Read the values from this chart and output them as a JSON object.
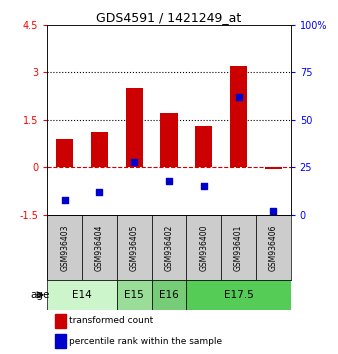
{
  "title": "GDS4591 / 1421249_at",
  "samples": [
    "GSM936403",
    "GSM936404",
    "GSM936405",
    "GSM936402",
    "GSM936400",
    "GSM936401",
    "GSM936406"
  ],
  "transformed_count": [
    0.9,
    1.1,
    2.5,
    1.7,
    1.3,
    3.2,
    -0.05
  ],
  "percentile_rank": [
    8,
    12,
    28,
    18,
    15,
    62,
    2
  ],
  "ylim_left": [
    -1.5,
    4.5
  ],
  "ylim_right": [
    0,
    100
  ],
  "yticks_left": [
    -1.5,
    0,
    1.5,
    3,
    4.5
  ],
  "yticks_right": [
    0,
    25,
    50,
    75,
    100
  ],
  "ytick_labels_left": [
    "-1.5",
    "0",
    "1.5",
    "3",
    "4.5"
  ],
  "ytick_labels_right": [
    "0",
    "25",
    "50",
    "75",
    "100%"
  ],
  "hlines": [
    1.5,
    3.0
  ],
  "dashed_hline": 0.0,
  "bar_color": "#cc0000",
  "dot_color": "#0000cc",
  "bar_width": 0.5,
  "background_color": "#ffffff",
  "sample_box_color": "#cccccc",
  "age_groups": [
    {
      "label": "E14",
      "start": 0,
      "end": 2,
      "color": "#ccf5cc"
    },
    {
      "label": "E15",
      "start": 2,
      "end": 3,
      "color": "#99dd99"
    },
    {
      "label": "E16",
      "start": 3,
      "end": 4,
      "color": "#77cc77"
    },
    {
      "label": "E17.5",
      "start": 4,
      "end": 7,
      "color": "#55cc55"
    }
  ]
}
